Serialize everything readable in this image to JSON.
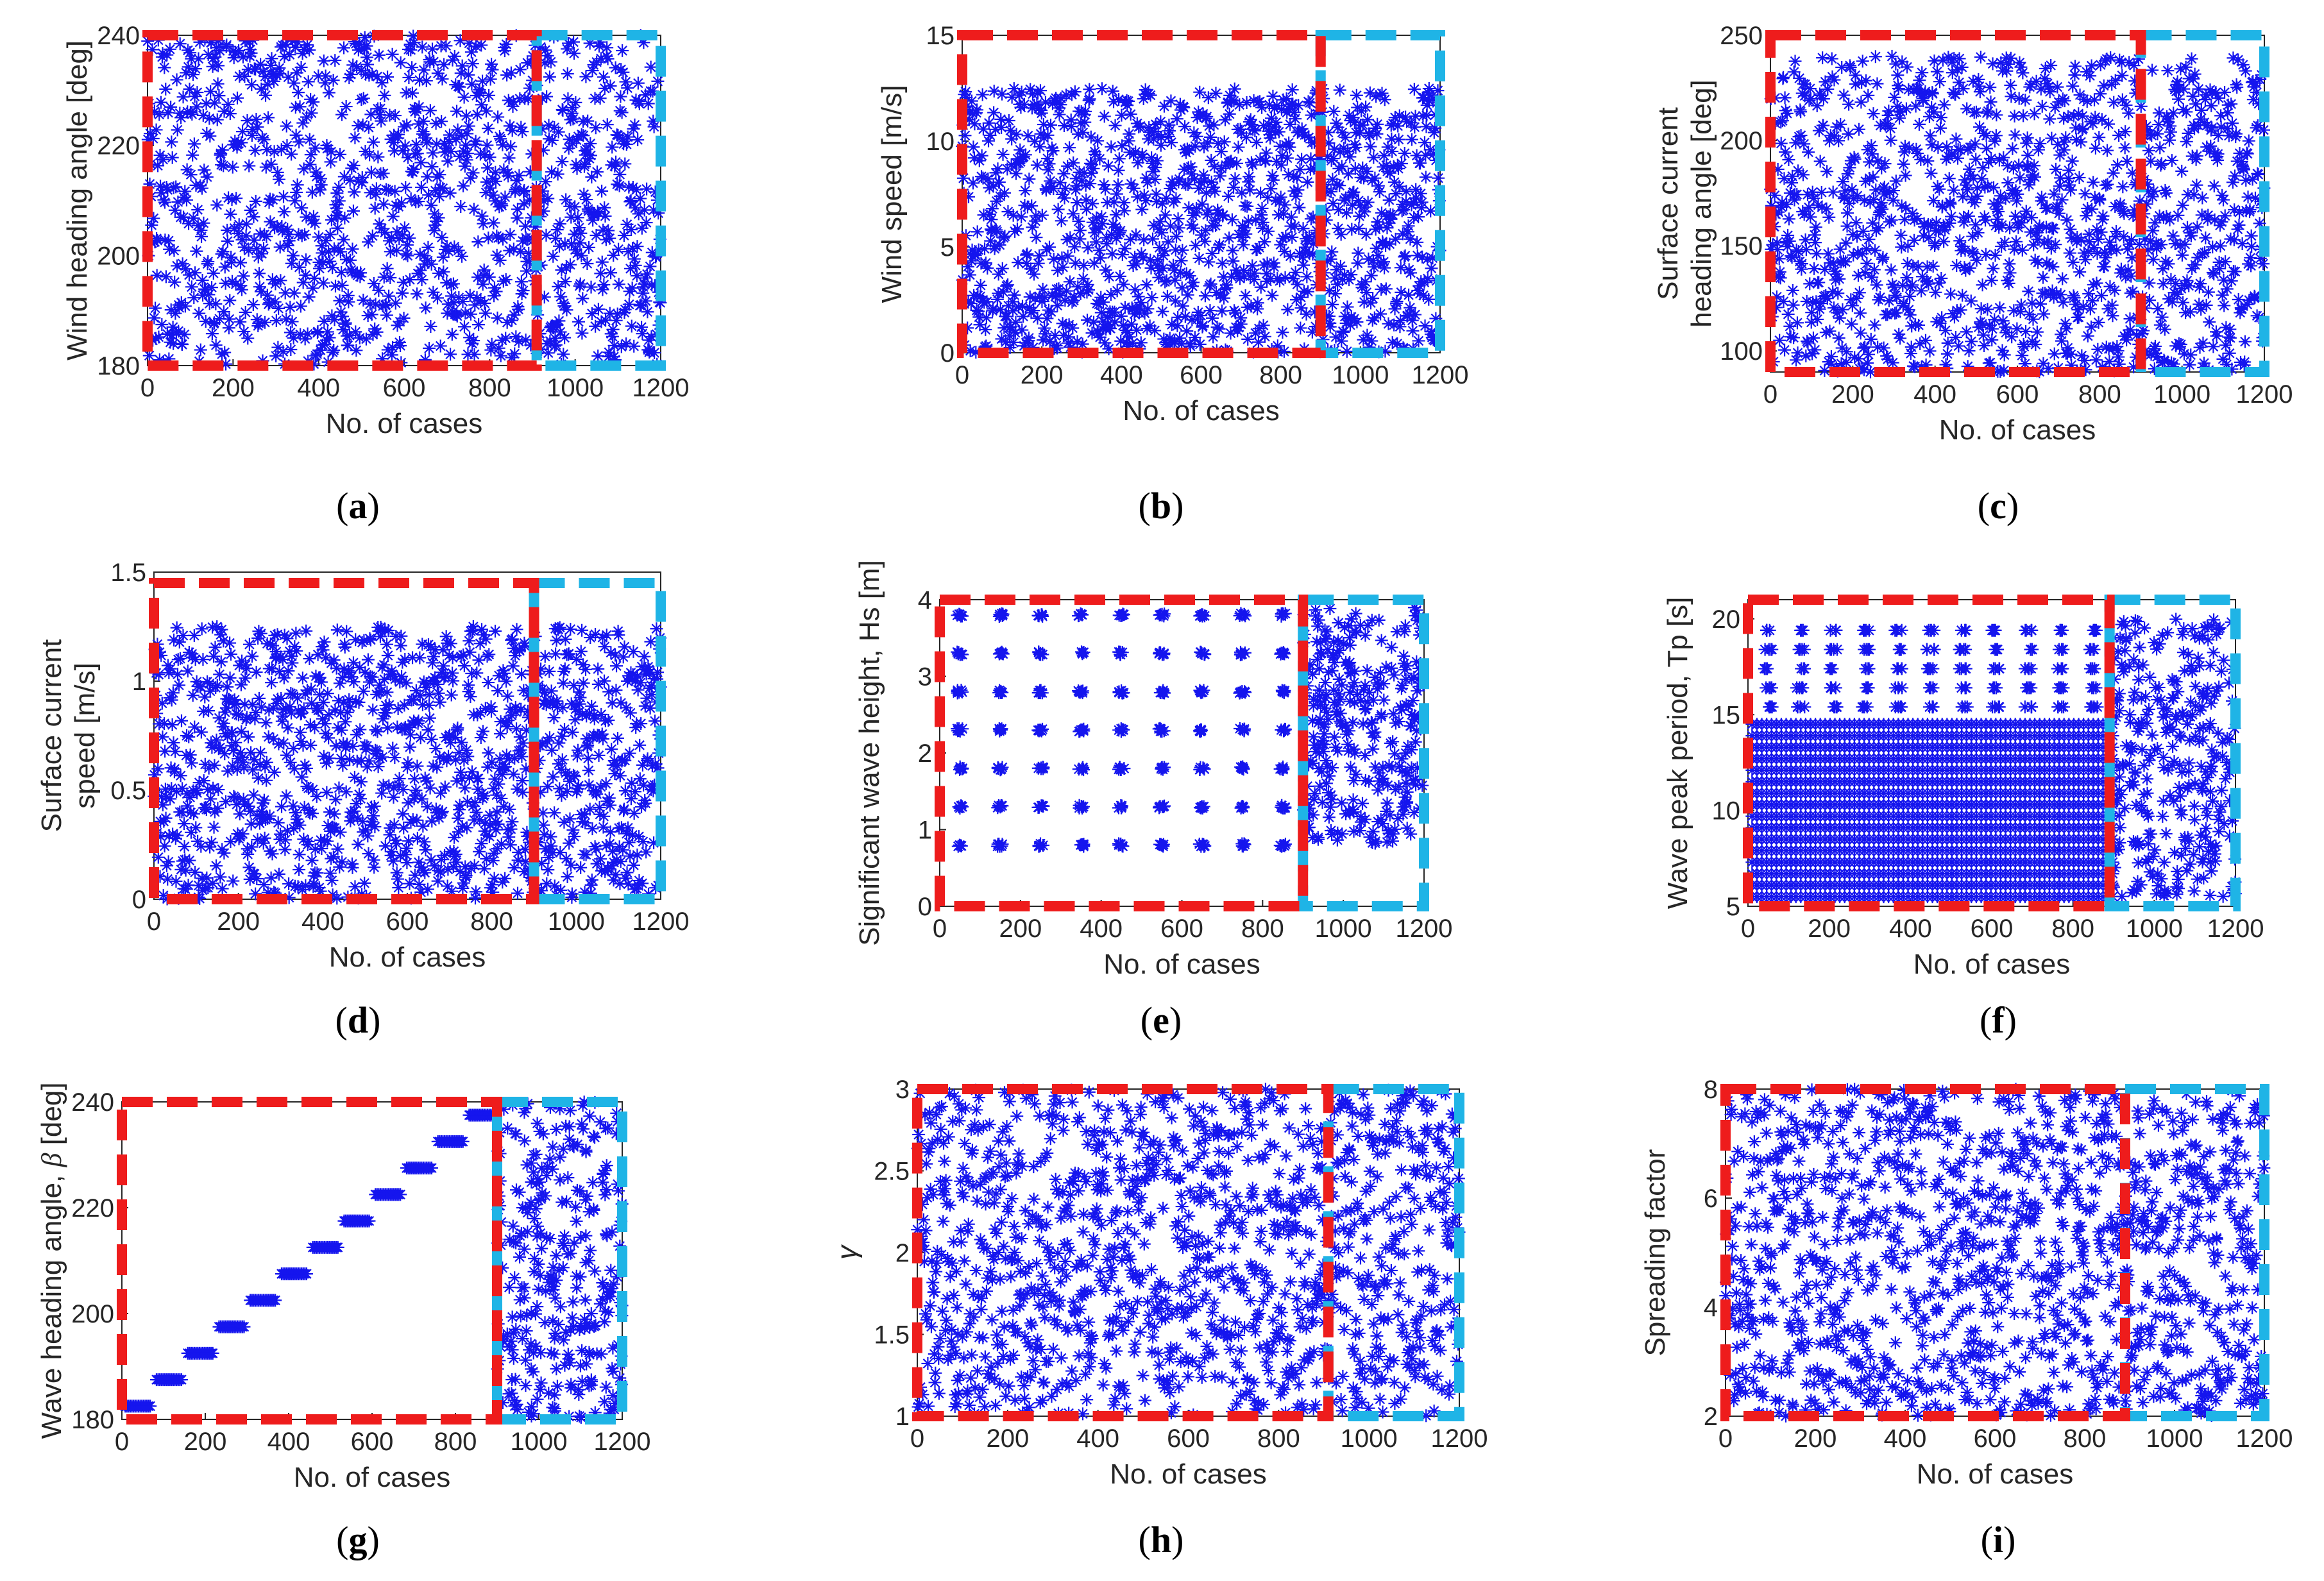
{
  "figure": {
    "colors": {
      "marker": "#1515ee",
      "red_box": "#ee1c1c",
      "blue_box": "#1fb4e6",
      "axis": "#262626"
    },
    "marker": "*"
  },
  "chart_data": [
    {
      "id": "a",
      "caption": "a",
      "type": "scatter",
      "xlabel": "No. of cases",
      "ylabel": [
        "Wind heading angle [deg]"
      ],
      "xlim": [
        0,
        1200
      ],
      "ylim": [
        180,
        240
      ],
      "xticks": [
        "0",
        "200",
        "400",
        "600",
        "800",
        "1000",
        "1200"
      ],
      "yticks": [
        {
          "v": 180,
          "t": "180"
        },
        {
          "v": 200,
          "t": "200"
        },
        {
          "v": 220,
          "t": "220"
        },
        {
          "v": 240,
          "t": "240"
        }
      ],
      "pattern": "random",
      "n_points": 1200,
      "split_at": 900,
      "y_range": [
        180,
        240
      ],
      "training_box": {
        "x": [
          0,
          910
        ],
        "y": [
          180,
          240
        ]
      },
      "test_box": {
        "x": [
          910,
          1200
        ],
        "y": [
          180,
          240
        ]
      }
    },
    {
      "id": "b",
      "caption": "b",
      "type": "scatter",
      "xlabel": "No. of cases",
      "ylabel": [
        "Wind speed [m/s]"
      ],
      "xlim": [
        0,
        1200
      ],
      "ylim": [
        0,
        15
      ],
      "xticks": [
        "0",
        "200",
        "400",
        "600",
        "800",
        "1000",
        "1200"
      ],
      "yticks": [
        {
          "v": 0,
          "t": "0"
        },
        {
          "v": 5,
          "t": "5"
        },
        {
          "v": 10,
          "t": "10"
        },
        {
          "v": 15,
          "t": "15"
        }
      ],
      "pattern": "random",
      "n_points": 1200,
      "split_at": 900,
      "y_range": [
        0,
        12.5
      ],
      "training_box": {
        "x": [
          0,
          900
        ],
        "y": [
          0,
          15
        ]
      },
      "test_box": {
        "x": [
          900,
          1200
        ],
        "y": [
          0,
          15
        ]
      }
    },
    {
      "id": "c",
      "caption": "c",
      "type": "scatter",
      "xlabel": "No. of cases",
      "ylabel": [
        "Surface current",
        "heading angle [deg]"
      ],
      "xlim": [
        0,
        1200
      ],
      "ylim": [
        90,
        250
      ],
      "xticks": [
        "0",
        "200",
        "400",
        "600",
        "800",
        "1000",
        "1200"
      ],
      "yticks": [
        {
          "v": 100,
          "t": "100"
        },
        {
          "v": 150,
          "t": "150"
        },
        {
          "v": 200,
          "t": "200"
        },
        {
          "v": 250,
          "t": "250"
        }
      ],
      "pattern": "random",
      "n_points": 1200,
      "split_at": 900,
      "y_range": [
        90,
        240
      ],
      "training_box": {
        "x": [
          0,
          900
        ],
        "y": [
          90,
          250
        ]
      },
      "test_box": {
        "x": [
          900,
          1200
        ],
        "y": [
          90,
          250
        ]
      }
    },
    {
      "id": "d",
      "caption": "d",
      "type": "scatter",
      "xlabel": "No. of cases",
      "ylabel": [
        "Surface current",
        "speed [m/s]"
      ],
      "xlim": [
        0,
        1200
      ],
      "ylim": [
        0,
        1.5
      ],
      "xticks": [
        "0",
        "200",
        "400",
        "600",
        "800",
        "1000",
        "1200"
      ],
      "yticks": [
        {
          "v": 0,
          "t": "0"
        },
        {
          "v": 0.5,
          "t": "0.5"
        },
        {
          "v": 1,
          "t": "1"
        },
        {
          "v": 1.5,
          "t": "1.5"
        }
      ],
      "pattern": "random",
      "n_points": 1200,
      "split_at": 900,
      "y_range": [
        0,
        1.25
      ],
      "training_box": {
        "x": [
          0,
          900
        ],
        "y": [
          0,
          1.45
        ]
      },
      "test_box": {
        "x": [
          900,
          1200
        ],
        "y": [
          0,
          1.45
        ]
      }
    },
    {
      "id": "e",
      "caption": "e",
      "type": "scatter",
      "xlabel": "No. of cases",
      "ylabel": [
        "Significant wave height, Hs [m]"
      ],
      "xlim": [
        0,
        1200
      ],
      "ylim": [
        0,
        4
      ],
      "xticks": [
        "0",
        "200",
        "400",
        "600",
        "800",
        "1000",
        "1200"
      ],
      "yticks": [
        {
          "v": 0,
          "t": "0"
        },
        {
          "v": 1,
          "t": "1"
        },
        {
          "v": 2,
          "t": "2"
        },
        {
          "v": 3,
          "t": "3"
        },
        {
          "v": 4,
          "t": "4"
        }
      ],
      "pattern": "grid",
      "split_at": 900,
      "grid_x": [
        50,
        150,
        250,
        350,
        450,
        550,
        650,
        750,
        850
      ],
      "grid_y": [
        0.8,
        1.3,
        1.8,
        2.3,
        2.8,
        3.3,
        3.8
      ],
      "test_n": 300,
      "test_y_range": [
        0.8,
        3.9
      ],
      "training_box": {
        "x": [
          0,
          900
        ],
        "y": [
          0,
          4
        ]
      },
      "test_box": {
        "x": [
          900,
          1200
        ],
        "y": [
          0,
          4
        ]
      }
    },
    {
      "id": "f",
      "caption": "f",
      "type": "scatter",
      "xlabel": "No. of cases",
      "ylabel": [
        "Wave peak period, Tp [s]"
      ],
      "xlim": [
        0,
        1200
      ],
      "ylim": [
        5,
        21
      ],
      "xticks": [
        "0",
        "200",
        "400",
        "600",
        "800",
        "1000",
        "1200"
      ],
      "yticks": [
        {
          "v": 5,
          "t": "5"
        },
        {
          "v": 10,
          "t": "10"
        },
        {
          "v": 15,
          "t": "15"
        },
        {
          "v": 20,
          "t": "20"
        }
      ],
      "pattern": "dense_rows",
      "split_at": 900,
      "rows_dense": [
        5.5,
        6.1,
        6.7,
        7.3,
        7.9,
        8.5,
        9.1,
        9.7,
        10.3,
        10.9,
        11.5,
        12.1,
        12.7,
        13.3,
        13.9,
        14.5
      ],
      "rows_sparse": [
        15.4,
        16.4,
        17.4,
        18.4,
        19.4
      ],
      "sparse_cols": [
        50,
        130,
        210,
        290,
        370,
        450,
        530,
        610,
        690,
        770,
        850
      ],
      "test_n": 300,
      "test_y_range": [
        5.5,
        20
      ],
      "training_box": {
        "x": [
          0,
          890
        ],
        "y": [
          5,
          21
        ]
      },
      "test_box": {
        "x": [
          890,
          1200
        ],
        "y": [
          5,
          21
        ]
      }
    },
    {
      "id": "g",
      "caption": "g",
      "type": "scatter",
      "xlabel": "No. of cases",
      "ylabel_parts": [
        "Wave heading angle, ",
        "β",
        " [deg]"
      ],
      "xlim": [
        0,
        1200
      ],
      "ylim": [
        180,
        240
      ],
      "xticks": [
        "0",
        "200",
        "400",
        "600",
        "800",
        "1000",
        "1200"
      ],
      "yticks": [
        {
          "v": 180,
          "t": "180"
        },
        {
          "v": 200,
          "t": "200"
        },
        {
          "v": 220,
          "t": "220"
        },
        {
          "v": 240,
          "t": "240"
        }
      ],
      "pattern": "steps",
      "split_at": 900,
      "steps": [
        {
          "x": [
            0,
            75
          ],
          "y": 182.5
        },
        {
          "x": 75,
          "x2": 150,
          "y": 187.5
        },
        {
          "x": [
            150,
            225
          ],
          "y": 192.5
        },
        {
          "x": [
            225,
            300
          ],
          "y": 197.5
        },
        {
          "x": [
            300,
            375
          ],
          "y": 202.5
        },
        {
          "x": [
            375,
            450
          ],
          "y": 207.5
        },
        {
          "x": [
            450,
            525
          ],
          "y": 212.5
        },
        {
          "x": [
            525,
            600
          ],
          "y": 217.5
        },
        {
          "x": [
            600,
            675
          ],
          "y": 222.5
        },
        {
          "x": [
            675,
            750
          ],
          "y": 227.5
        },
        {
          "x": [
            750,
            825
          ],
          "y": 232.5
        },
        {
          "x": [
            825,
            900
          ],
          "y": 237.5
        }
      ],
      "test_n": 300,
      "test_y_range": [
        180,
        240
      ],
      "training_box": {
        "x": [
          0,
          900
        ],
        "y": [
          180,
          240
        ]
      },
      "test_box": {
        "x": [
          900,
          1200
        ],
        "y": [
          180,
          240
        ]
      }
    },
    {
      "id": "h",
      "caption": "h",
      "type": "scatter",
      "xlabel": "No. of cases",
      "ylabel": [
        "γ"
      ],
      "xlim": [
        0,
        1200
      ],
      "ylim": [
        1,
        3
      ],
      "xticks": [
        "0",
        "200",
        "400",
        "600",
        "800",
        "1000",
        "1200"
      ],
      "yticks": [
        {
          "v": 1,
          "t": "1"
        },
        {
          "v": 1.5,
          "t": "1.5"
        },
        {
          "v": 2,
          "t": "2"
        },
        {
          "v": 2.5,
          "t": "2.5"
        },
        {
          "v": 3,
          "t": "3"
        }
      ],
      "pattern": "random",
      "n_points": 1200,
      "split_at": 900,
      "y_range": [
        1,
        3
      ],
      "training_box": {
        "x": [
          0,
          910
        ],
        "y": [
          1,
          3
        ]
      },
      "test_box": {
        "x": [
          910,
          1200
        ],
        "y": [
          1,
          3
        ]
      }
    },
    {
      "id": "i",
      "caption": "i",
      "type": "scatter",
      "xlabel": "No. of cases",
      "ylabel": [
        "Spreading factor"
      ],
      "xlim": [
        0,
        1200
      ],
      "ylim": [
        2,
        8
      ],
      "xticks": [
        "0",
        "200",
        "400",
        "600",
        "800",
        "1000",
        "1200"
      ],
      "yticks": [
        {
          "v": 2,
          "t": "2"
        },
        {
          "v": 4,
          "t": "4"
        },
        {
          "v": 6,
          "t": "6"
        },
        {
          "v": 8,
          "t": "8"
        }
      ],
      "pattern": "random",
      "n_points": 1200,
      "split_at": 900,
      "y_range": [
        2,
        8
      ],
      "training_box": {
        "x": [
          0,
          890
        ],
        "y": [
          2,
          8
        ]
      },
      "test_box": {
        "x": [
          890,
          1200
        ],
        "y": [
          2,
          8
        ]
      }
    }
  ]
}
